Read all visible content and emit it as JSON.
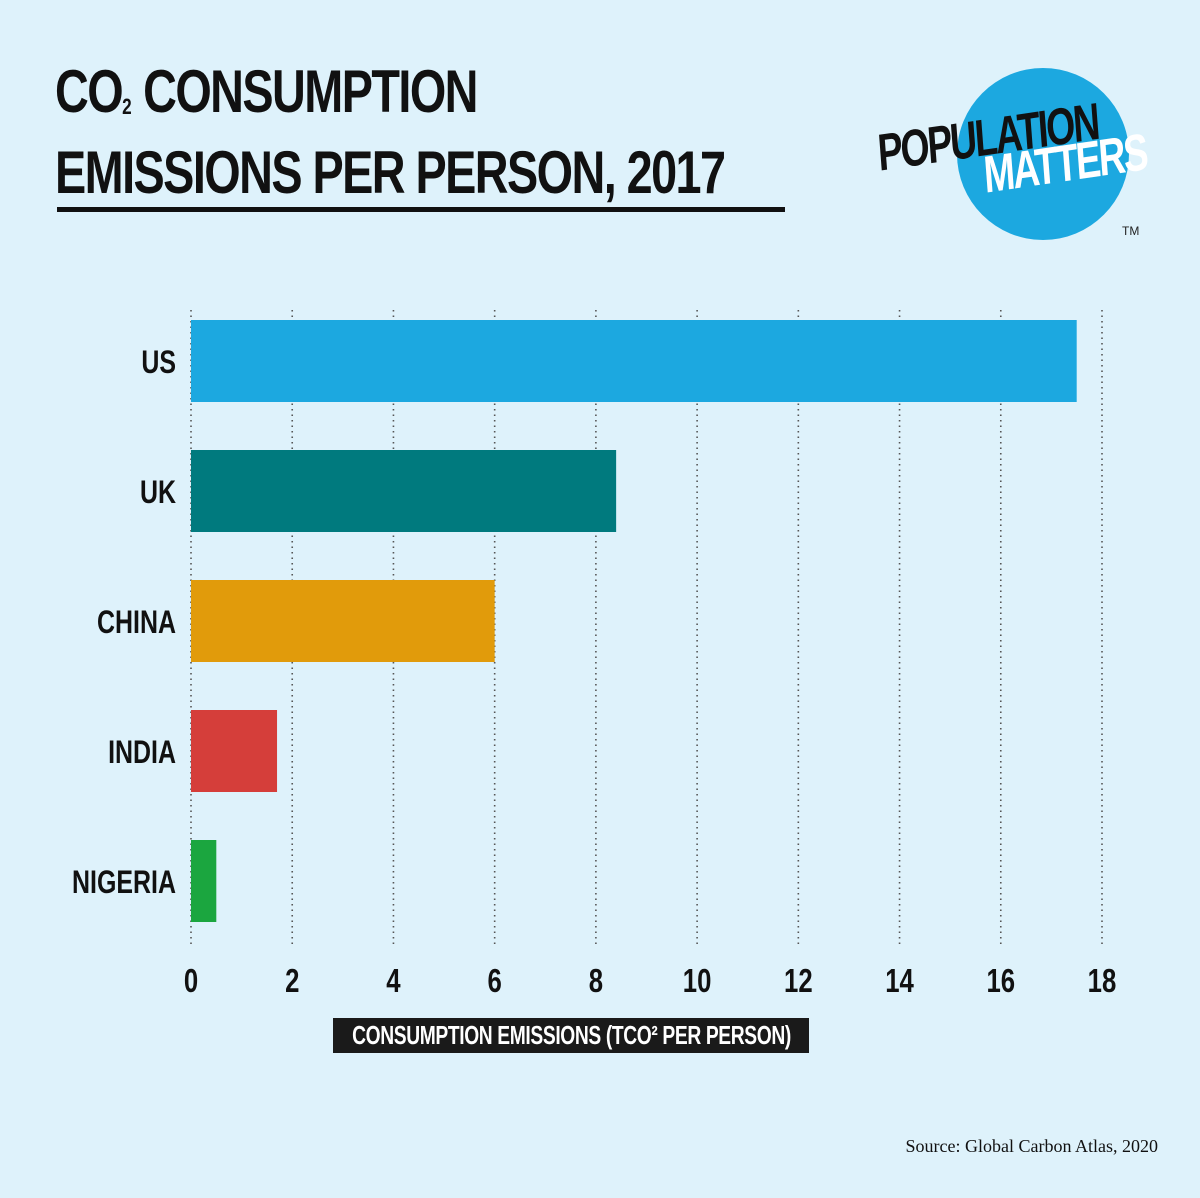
{
  "title": {
    "line1_prefix": "CO",
    "line1_sub": "2",
    "line1_suffix": " CONSUMPTION",
    "line2": "EMISSIONS PER PERSON, 2017"
  },
  "logo": {
    "word1": "POPULATION",
    "word2": "MATTERS",
    "trademark": "TM",
    "circle_color": "#1ca8e0"
  },
  "source": "Source: Global Carbon Atlas, 2020",
  "chart_data": {
    "type": "bar",
    "orientation": "horizontal",
    "categories": [
      "US",
      "UK",
      "CHINA",
      "INDIA",
      "NIGERIA"
    ],
    "values": [
      17.5,
      8.4,
      6.0,
      1.7,
      0.5
    ],
    "colors": [
      "#1ca8e0",
      "#007a7e",
      "#e19b0b",
      "#d53e3a",
      "#1ba63f"
    ],
    "xlabel": "CONSUMPTION EMISSIONS (TCO² PER PERSON)",
    "xlim": [
      0,
      18
    ],
    "xticks": [
      0,
      2,
      4,
      6,
      8,
      10,
      12,
      14,
      16,
      18
    ],
    "grid": "vertical dotted"
  }
}
